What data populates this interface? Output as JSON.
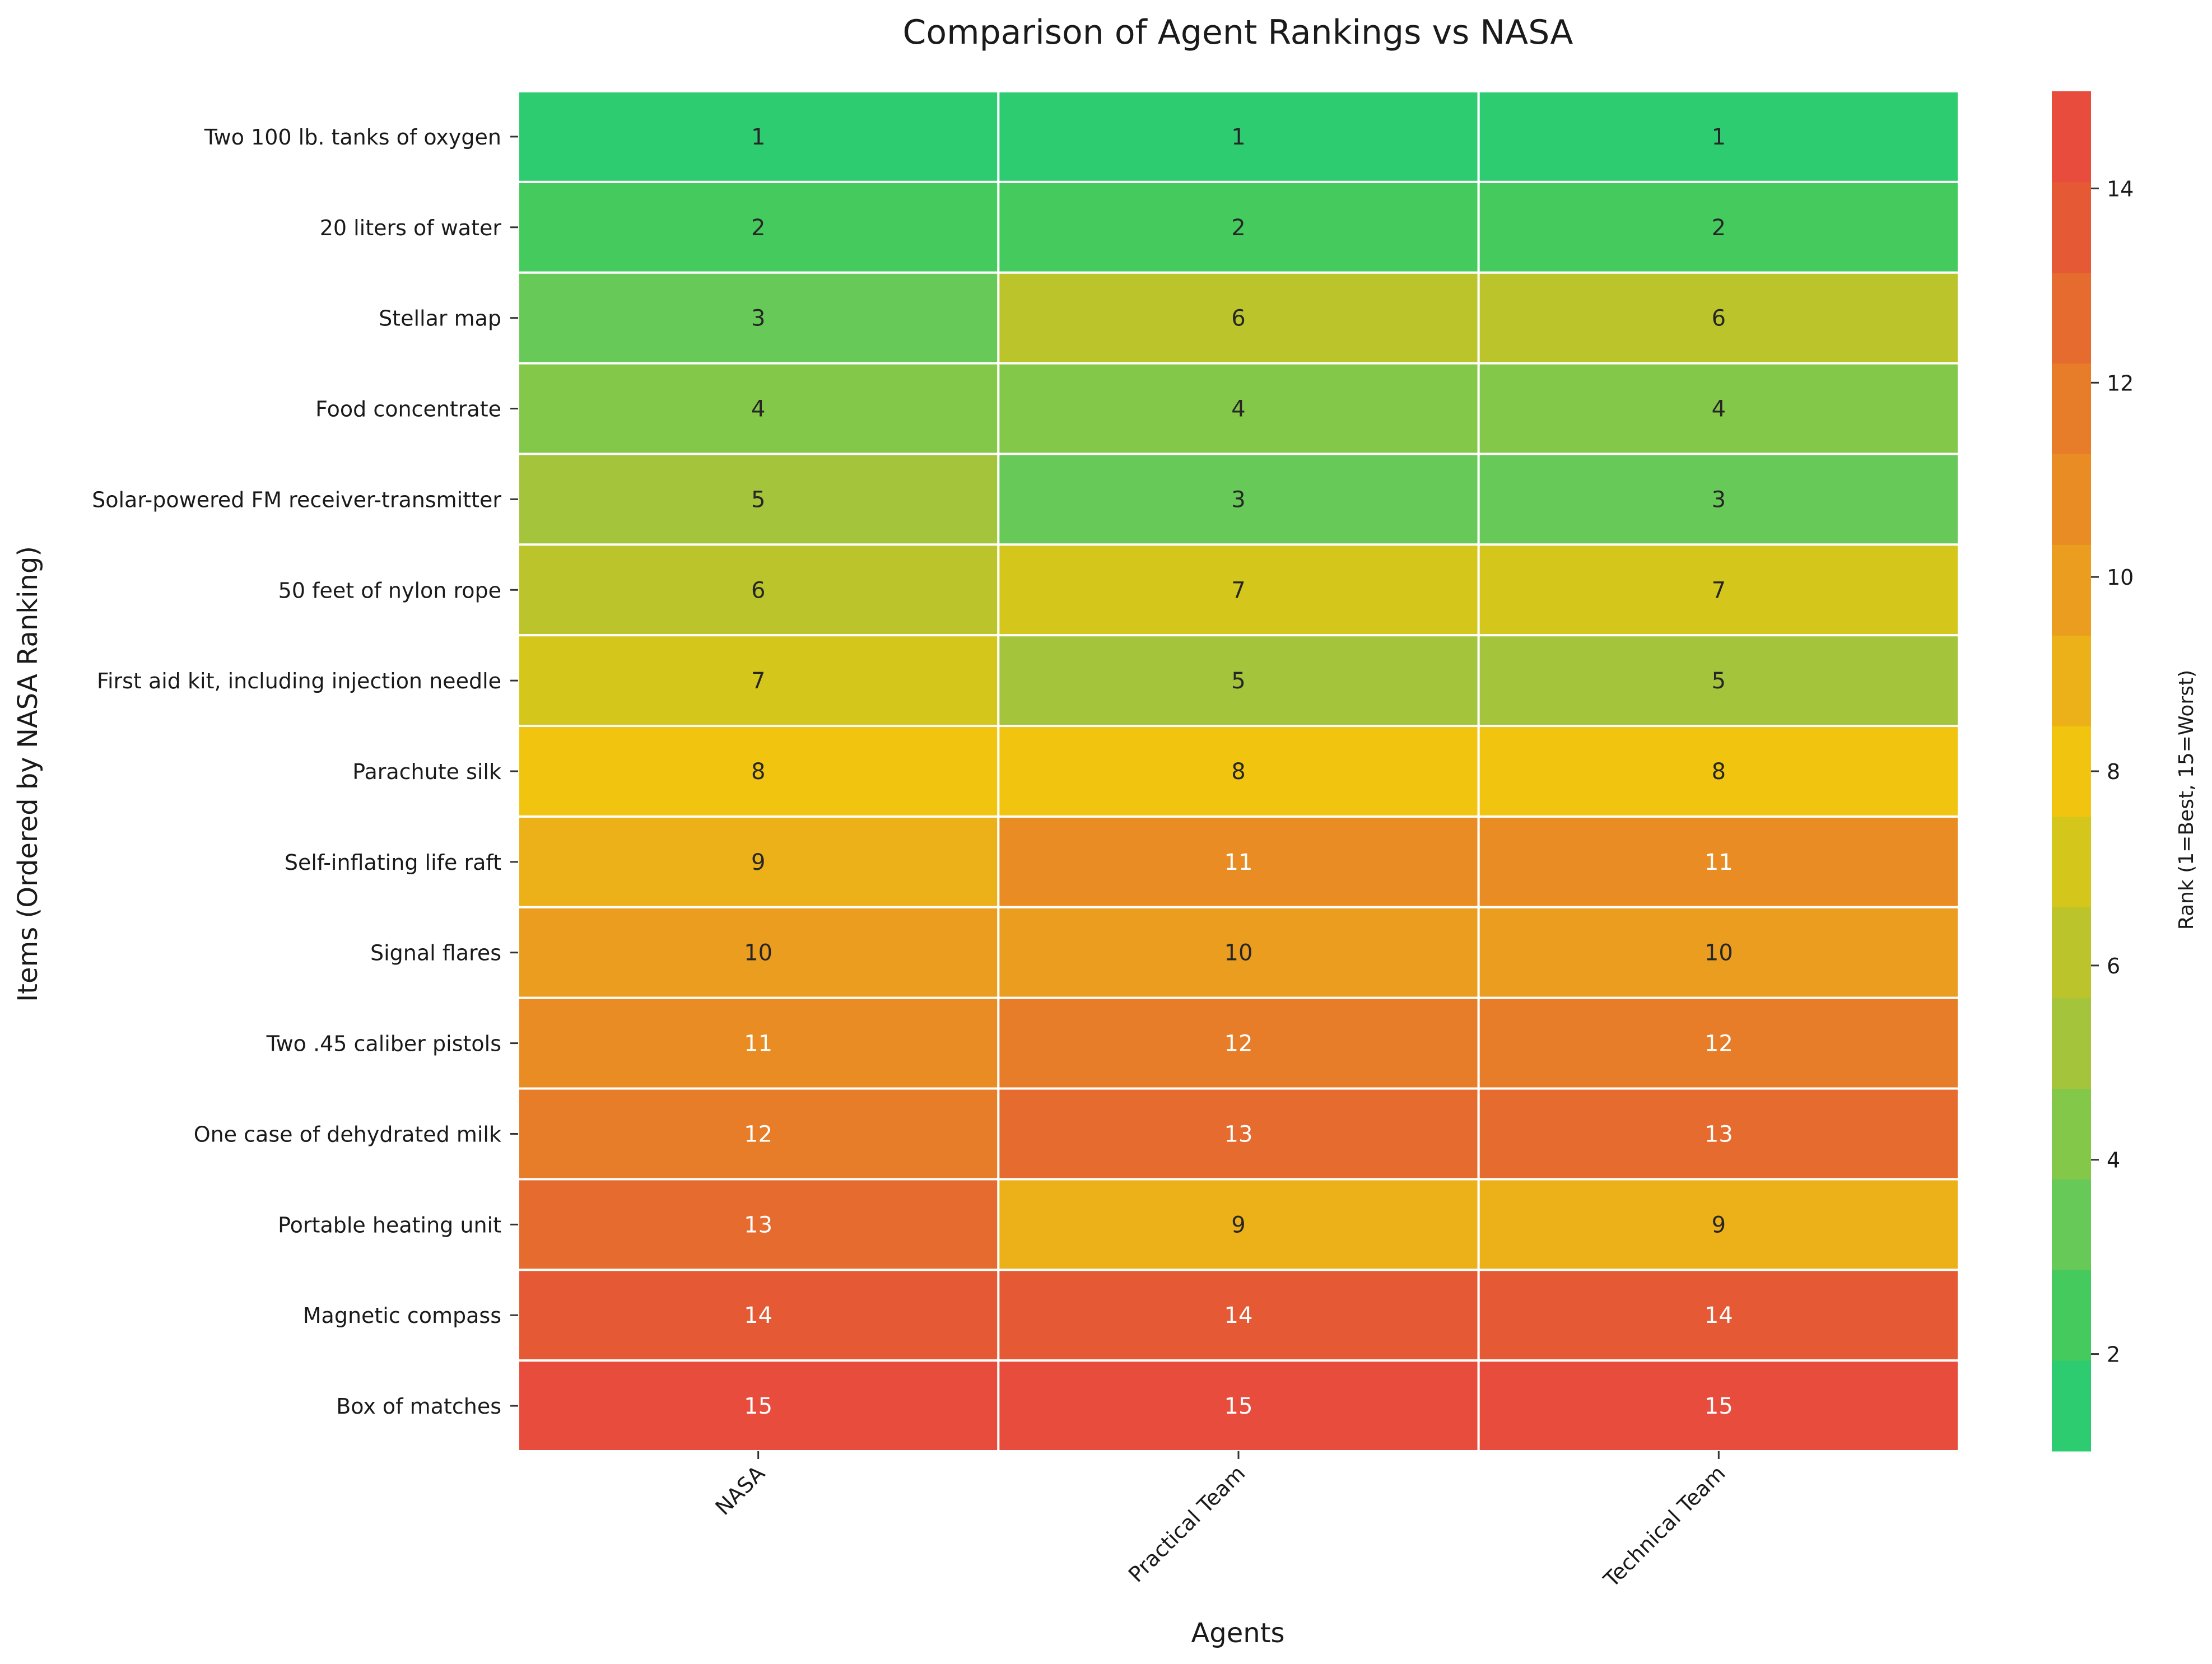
{
  "chart_data": {
    "type": "heatmap",
    "title": "Comparison of Agent Rankings vs NASA",
    "xlabel": "Agents",
    "ylabel": "Items (Ordered by NASA Ranking)",
    "x_categories": [
      "NASA",
      "Practical Team",
      "Technical Team"
    ],
    "y_categories": [
      "Two 100 lb. tanks of oxygen",
      "20 liters of water",
      "Stellar map",
      "Food concentrate",
      "Solar-powered FM receiver-transmitter",
      "50 feet of nylon rope",
      "First aid kit, including injection needle",
      "Parachute silk",
      "Self-inflating life raft",
      "Signal flares",
      "Two .45 caliber pistols",
      "One case of dehydrated milk",
      "Portable heating unit",
      "Magnetic compass",
      "Box of matches"
    ],
    "values": [
      [
        1,
        1,
        1
      ],
      [
        2,
        2,
        2
      ],
      [
        3,
        6,
        6
      ],
      [
        4,
        4,
        4
      ],
      [
        5,
        3,
        3
      ],
      [
        6,
        7,
        7
      ],
      [
        7,
        5,
        5
      ],
      [
        8,
        8,
        8
      ],
      [
        9,
        11,
        11
      ],
      [
        10,
        10,
        10
      ],
      [
        11,
        12,
        12
      ],
      [
        12,
        13,
        13
      ],
      [
        13,
        9,
        9
      ],
      [
        14,
        14,
        14
      ],
      [
        15,
        15,
        15
      ]
    ],
    "colorbar": {
      "label": "Rank (1=Best, 15=Worst)",
      "range": [
        1,
        15
      ],
      "ticks": [
        2,
        4,
        6,
        8,
        10,
        12,
        14
      ]
    },
    "colors": {
      "1": "#2ecc71",
      "2": "#45ca5e",
      "3": "#67c957",
      "4": "#84c84a",
      "5": "#a4c43b",
      "6": "#bbc42b",
      "7": "#d5c61c",
      "8": "#f1c40f",
      "9": "#ecb018",
      "10": "#ea9d1f",
      "11": "#e98c23",
      "12": "#e77c29",
      "13": "#e66b2f",
      "14": "#e55a35",
      "15": "#e74c3c"
    },
    "text_colors": {
      "dark": "#262626",
      "light": "#ffffff"
    },
    "light_text_min": 11
  }
}
